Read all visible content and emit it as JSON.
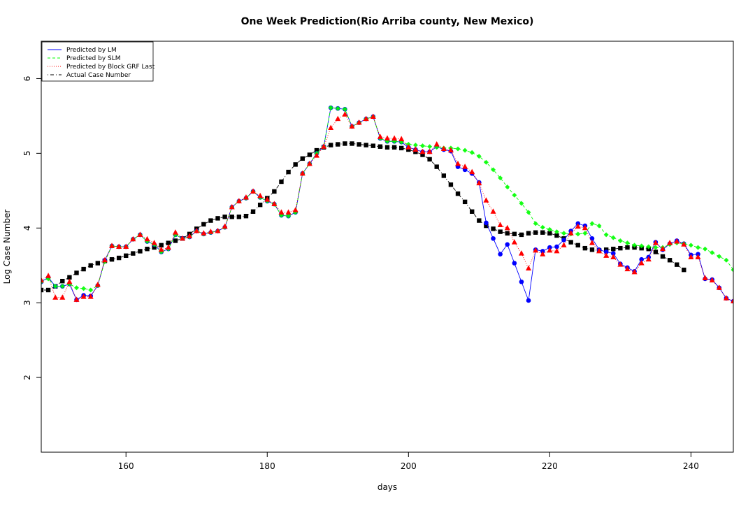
{
  "chart_data": {
    "type": "scatter",
    "title": "One Week Prediction(Rio Arriba county, New Mexico)",
    "xlabel": "days",
    "ylabel": "Log Case Number",
    "xlim": [
      148,
      246
    ],
    "ylim": [
      1,
      6.5
    ],
    "xticks": [
      160,
      180,
      200,
      220,
      240
    ],
    "yticks": [
      2,
      3,
      4,
      5,
      6
    ],
    "grid": false,
    "legend_position": "top-left",
    "x": [
      148,
      149,
      150,
      151,
      152,
      153,
      154,
      155,
      156,
      157,
      158,
      159,
      160,
      161,
      162,
      163,
      164,
      165,
      166,
      167,
      168,
      169,
      170,
      171,
      172,
      173,
      174,
      175,
      176,
      177,
      178,
      179,
      180,
      181,
      182,
      183,
      184,
      185,
      186,
      187,
      188,
      189,
      190,
      191,
      192,
      193,
      194,
      195,
      196,
      197,
      198,
      199,
      200,
      201,
      202,
      203,
      204,
      205,
      206,
      207,
      208,
      209,
      210,
      211,
      212,
      213,
      214,
      215,
      216,
      217,
      218,
      219,
      220,
      221,
      222,
      223,
      224,
      225,
      226,
      227,
      228,
      229,
      230,
      231,
      232,
      233,
      234,
      235,
      236,
      237,
      238,
      239,
      240,
      241,
      242,
      243,
      244,
      245,
      246
    ],
    "series": [
      {
        "name": "Predicted by LM",
        "color": "#0000ff",
        "line": "solid",
        "marker": "circle",
        "values": [
          3.28,
          3.34,
          3.22,
          3.22,
          3.25,
          3.04,
          3.1,
          3.09,
          3.23,
          3.57,
          3.76,
          3.75,
          3.75,
          3.85,
          3.91,
          3.82,
          3.78,
          3.68,
          3.72,
          3.91,
          3.86,
          3.88,
          3.96,
          3.92,
          3.94,
          3.96,
          4.01,
          4.28,
          4.36,
          4.4,
          4.49,
          4.41,
          4.36,
          4.32,
          4.17,
          4.16,
          4.21,
          4.73,
          4.86,
          5.0,
          5.09,
          5.61,
          5.6,
          5.59,
          5.36,
          5.41,
          5.46,
          5.49,
          5.2,
          5.16,
          5.16,
          5.15,
          5.08,
          5.05,
          5.02,
          5.02,
          5.09,
          5.05,
          5.03,
          4.82,
          4.78,
          4.73,
          4.61,
          4.07,
          3.86,
          3.65,
          3.78,
          3.53,
          3.28,
          3.03,
          3.71,
          3.69,
          3.74,
          3.75,
          3.84,
          3.96,
          4.06,
          4.03,
          3.86,
          3.71,
          3.68,
          3.66,
          3.52,
          3.47,
          3.42,
          3.58,
          3.61,
          3.81,
          3.71,
          3.79,
          3.83,
          3.79,
          3.64,
          3.65,
          3.32,
          3.31,
          3.2,
          3.06,
          3.02
        ]
      },
      {
        "name": "Predicted by SLM",
        "color": "#00ff00",
        "line": "dashed",
        "marker": "diamond",
        "values": [
          3.28,
          3.32,
          3.22,
          3.22,
          3.25,
          3.2,
          3.19,
          3.17,
          3.23,
          3.55,
          3.76,
          3.75,
          3.75,
          3.85,
          3.91,
          3.82,
          3.78,
          3.68,
          3.72,
          3.91,
          3.86,
          3.88,
          3.96,
          3.92,
          3.94,
          3.96,
          4.01,
          4.28,
          4.36,
          4.4,
          4.49,
          4.41,
          4.36,
          4.32,
          4.17,
          4.16,
          4.21,
          4.73,
          4.86,
          5.0,
          5.09,
          5.61,
          5.6,
          5.59,
          5.36,
          5.41,
          5.46,
          5.49,
          5.2,
          5.16,
          5.16,
          5.15,
          5.12,
          5.11,
          5.1,
          5.09,
          5.08,
          5.07,
          5.07,
          5.06,
          5.04,
          5.01,
          4.96,
          4.88,
          4.78,
          4.67,
          4.55,
          4.44,
          4.33,
          4.21,
          4.06,
          4.01,
          3.98,
          3.95,
          3.93,
          3.92,
          3.92,
          3.93,
          4.06,
          4.03,
          3.91,
          3.87,
          3.83,
          3.8,
          3.77,
          3.76,
          3.75,
          3.74,
          3.74,
          3.78,
          3.8,
          3.79,
          3.77,
          3.74,
          3.72,
          3.67,
          3.62,
          3.57,
          3.44
        ]
      },
      {
        "name": "Predicted by Block GRF Last",
        "color": "#ff0000",
        "line": "dotted",
        "marker": "triangle",
        "values": [
          3.3,
          3.36,
          3.07,
          3.07,
          3.28,
          3.04,
          3.08,
          3.08,
          3.24,
          3.57,
          3.76,
          3.75,
          3.75,
          3.85,
          3.91,
          3.85,
          3.8,
          3.71,
          3.74,
          3.94,
          3.86,
          3.89,
          3.96,
          3.93,
          3.95,
          3.96,
          4.02,
          4.28,
          4.36,
          4.41,
          4.49,
          4.43,
          4.38,
          4.32,
          4.21,
          4.21,
          4.24,
          4.73,
          4.86,
          4.97,
          5.09,
          5.34,
          5.46,
          5.52,
          5.36,
          5.41,
          5.46,
          5.49,
          5.22,
          5.2,
          5.2,
          5.19,
          5.08,
          5.05,
          5.02,
          5.02,
          5.12,
          5.06,
          5.04,
          4.86,
          4.82,
          4.75,
          4.6,
          4.37,
          4.22,
          4.04,
          4.0,
          3.81,
          3.66,
          3.46,
          3.7,
          3.65,
          3.7,
          3.69,
          3.77,
          3.93,
          4.02,
          4.0,
          3.8,
          3.69,
          3.63,
          3.61,
          3.51,
          3.45,
          3.41,
          3.53,
          3.58,
          3.8,
          3.72,
          3.8,
          3.82,
          3.78,
          3.61,
          3.61,
          3.33,
          3.3,
          3.2,
          3.06,
          3.02
        ]
      },
      {
        "name": "Actual Case Number",
        "color": "#000000",
        "line": "dotdash",
        "marker": "square",
        "values": [
          3.17,
          3.17,
          3.22,
          3.29,
          3.34,
          3.4,
          3.45,
          3.5,
          3.53,
          3.56,
          3.58,
          3.6,
          3.63,
          3.66,
          3.69,
          3.72,
          3.74,
          3.77,
          3.8,
          3.83,
          3.86,
          3.92,
          3.99,
          4.05,
          4.1,
          4.13,
          4.15,
          4.15,
          4.15,
          4.16,
          4.22,
          4.31,
          4.4,
          4.49,
          4.62,
          4.75,
          4.85,
          4.93,
          4.98,
          5.04,
          5.08,
          5.11,
          5.12,
          5.13,
          5.13,
          5.12,
          5.11,
          5.1,
          5.09,
          5.08,
          5.08,
          5.07,
          5.05,
          5.02,
          4.98,
          4.92,
          4.82,
          4.7,
          4.58,
          4.46,
          4.35,
          4.22,
          4.1,
          4.03,
          3.99,
          3.95,
          3.93,
          3.92,
          3.91,
          3.93,
          3.94,
          3.94,
          3.93,
          3.9,
          3.86,
          3.81,
          3.77,
          3.73,
          3.71,
          3.7,
          3.71,
          3.72,
          3.73,
          3.74,
          3.74,
          3.73,
          3.72,
          3.68,
          3.62,
          3.57,
          3.51,
          3.44,
          null,
          null,
          null,
          null,
          null,
          null,
          null
        ]
      }
    ]
  }
}
